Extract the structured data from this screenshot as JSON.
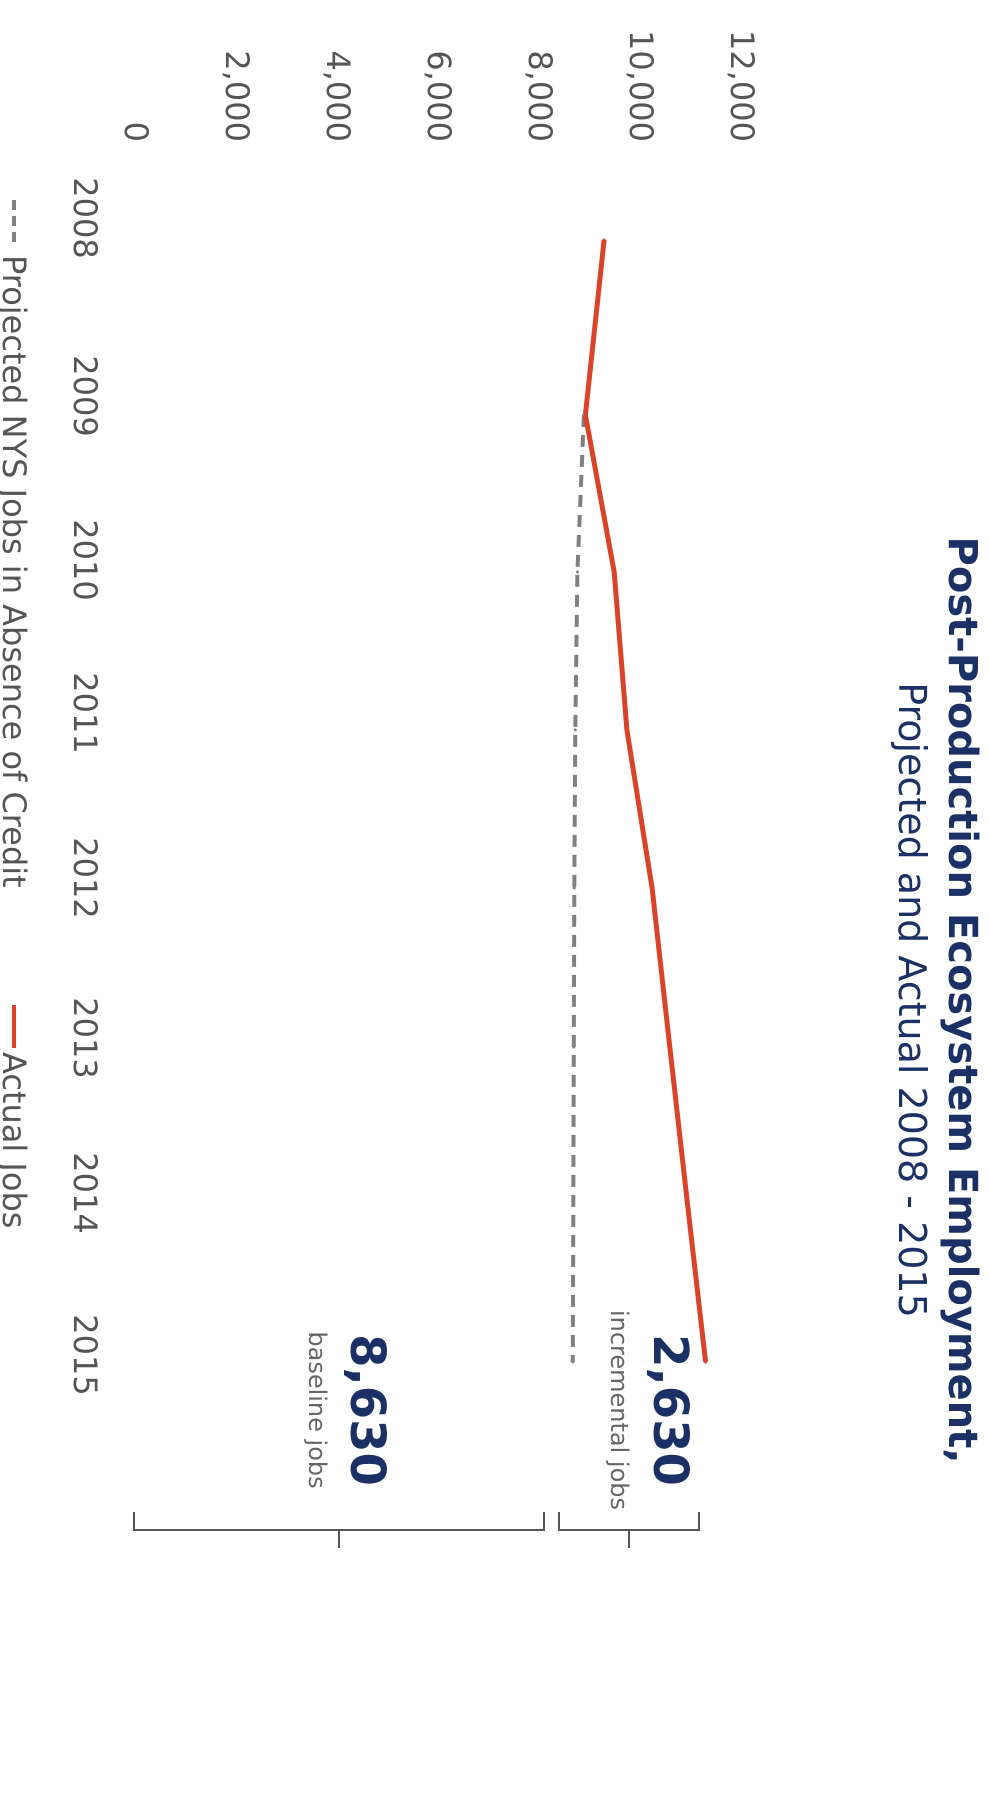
{
  "chart_data": {
    "type": "line",
    "title": "Post-Production Ecosystem Employment,",
    "subtitle": "Projected and Actual 2008 - 2015",
    "x": [
      "2008",
      "2009",
      "2010",
      "2011",
      "2012",
      "2013",
      "2014",
      "2015"
    ],
    "y_ticks": [
      "0",
      "2,000",
      "4,000",
      "6,000",
      "8,000",
      "10,000",
      "12,000"
    ],
    "ylim": [
      0,
      12000
    ],
    "grid": false,
    "legend_position": "bottom",
    "series": [
      {
        "name": "Projected NYS Jobs in Absence of Credit",
        "style": "dashed",
        "color": "#808080",
        "x": [
          "2009",
          "2010",
          "2011",
          "2012",
          "2013",
          "2014",
          "2015"
        ],
        "values": [
          8850,
          8720,
          8680,
          8660,
          8650,
          8640,
          8630
        ]
      },
      {
        "name": "Actual Jobs",
        "style": "solid",
        "color": "#d8432a",
        "x": [
          "2008",
          "2009",
          "2010",
          "2011",
          "2012",
          "2013",
          "2014",
          "2015"
        ],
        "values": [
          9250,
          8880,
          9450,
          9700,
          10200,
          10550,
          10900,
          11260
        ]
      }
    ],
    "annotations": [
      {
        "value": "2,630",
        "label": "incremental jobs"
      },
      {
        "value": "8,630",
        "label": "baseline jobs"
      }
    ]
  }
}
